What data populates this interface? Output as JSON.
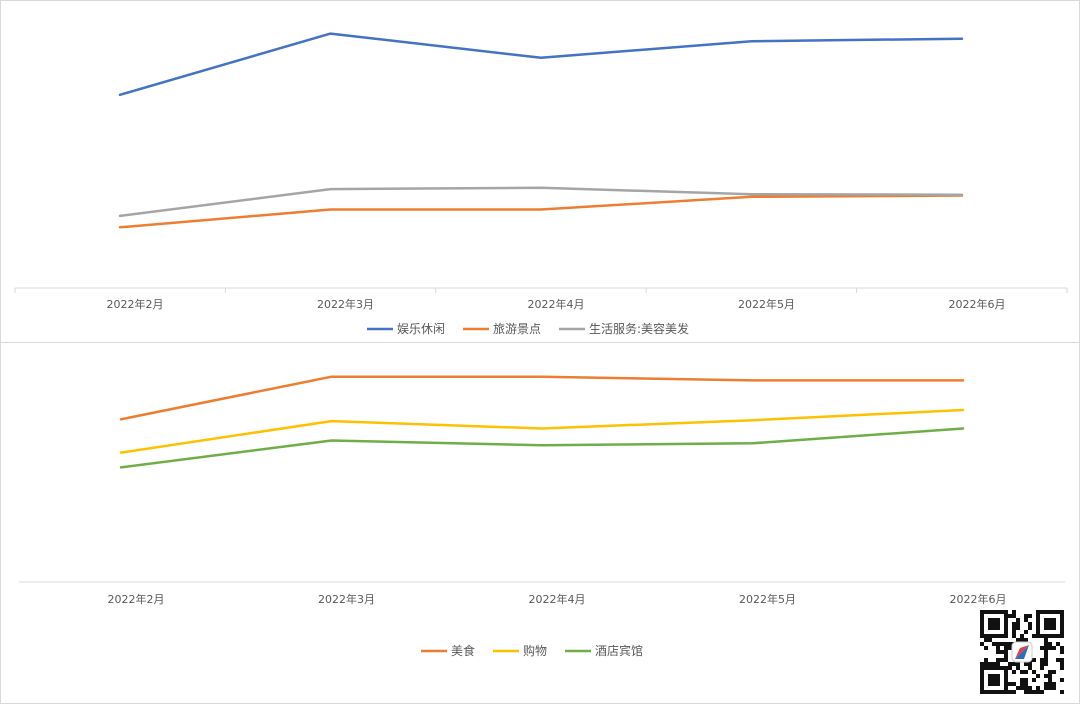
{
  "chart_data": [
    {
      "type": "line",
      "categories": [
        "2022年2月",
        "2022年3月",
        "2022年4月",
        "2022年5月",
        "2022年6月"
      ],
      "ylim": [
        0,
        100
      ],
      "grid": false,
      "legend": "bottom",
      "series": [
        {
          "name": "娱乐休闲",
          "color": "#4472c4",
          "values": [
            75,
            99,
            89.5,
            96,
            97
          ]
        },
        {
          "name": "旅游景点",
          "color": "#ed7d31",
          "values": [
            23,
            30,
            30,
            35,
            35.5
          ]
        },
        {
          "name": "生活服务:美容美发",
          "color": "#a5a5a5",
          "values": [
            27.5,
            38,
            38.5,
            36,
            35.8
          ]
        }
      ]
    },
    {
      "type": "line",
      "categories": [
        "2022年2月",
        "2022年3月",
        "2022年4月",
        "2022年5月",
        "2022年6月"
      ],
      "ylim": [
        0,
        100
      ],
      "grid": false,
      "legend": "bottom",
      "series": [
        {
          "name": "美食",
          "color": "#ed7d31",
          "values": [
            75,
            98,
            98,
            96,
            96
          ]
        },
        {
          "name": "购物",
          "color": "#ffc000",
          "values": [
            57,
            74,
            70,
            74.5,
            80
          ]
        },
        {
          "name": "酒店宾馆",
          "color": "#70ad47",
          "values": [
            49,
            63.5,
            61,
            62,
            70
          ]
        }
      ]
    }
  ]
}
